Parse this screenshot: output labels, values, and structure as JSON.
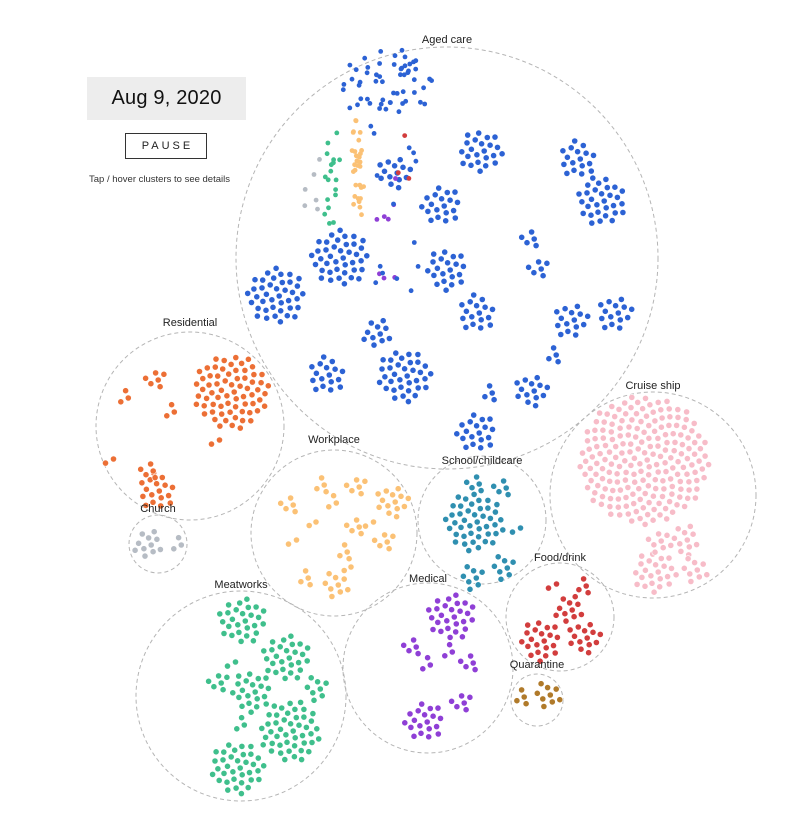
{
  "date": "Aug 9, 2020",
  "controls": {
    "pause_label": "PAUSE"
  },
  "hint": "Tap / hover clusters to see details",
  "colors": {
    "aged_care": "#2c62d4",
    "residential": "#ec6f35",
    "church": "#b6bcc4",
    "workplace": "#fbc175",
    "school_childcare": "#2f8fb0",
    "cruise_ship": "#f7bcc8",
    "meatworks": "#3fbf8c",
    "medical": "#8f3fd6",
    "food_drink": "#d23d3d",
    "quarantine": "#b07a2a",
    "outline": "#b5b5b5"
  },
  "chart_data": {
    "type": "bubble-cluster",
    "title": "",
    "groups": [
      {
        "name": "Aged care",
        "color": "#2c62d4"
      },
      {
        "name": "Residential",
        "color": "#ec6f35"
      },
      {
        "name": "Church",
        "color": "#b6bcc4"
      },
      {
        "name": "Workplace",
        "color": "#fbc175"
      },
      {
        "name": "School/childcare",
        "color": "#2f8fb0"
      },
      {
        "name": "Cruise ship",
        "color": "#f7bcc8"
      },
      {
        "name": "Meatworks",
        "color": "#3fbf8c"
      },
      {
        "name": "Medical",
        "color": "#8f3fd6"
      },
      {
        "name": "Food/drink",
        "color": "#d23d3d"
      },
      {
        "name": "Quarantine",
        "color": "#b07a2a"
      }
    ]
  }
}
